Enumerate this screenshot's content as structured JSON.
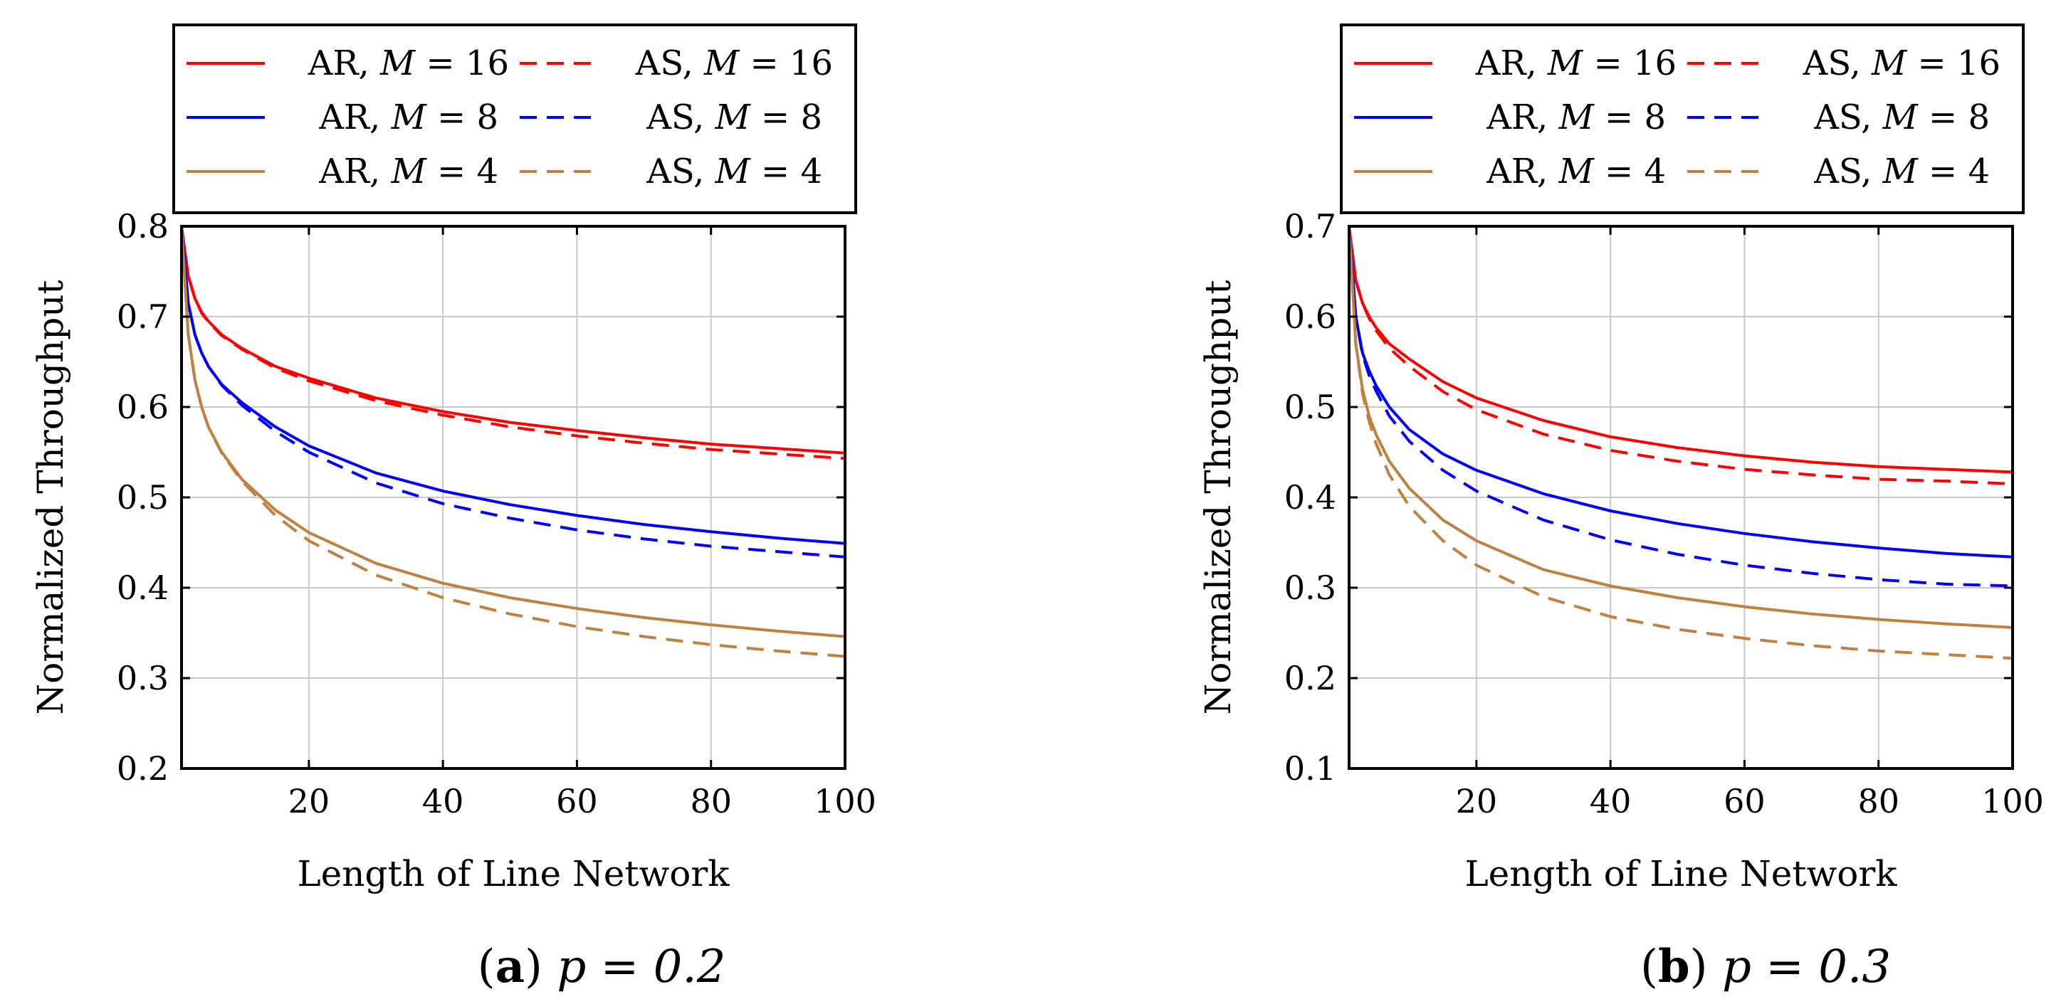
{
  "chart_data": [
    {
      "type": "line",
      "caption_letter": "a",
      "caption_expr": "p = 0.2",
      "xlabel": "Length of Line Network",
      "ylabel": "Normalized Throughput",
      "xlim": [
        1,
        100
      ],
      "ylim": [
        0.2,
        0.8
      ],
      "xticks": [
        20,
        40,
        60,
        80,
        100
      ],
      "xtick_labels": [
        "20",
        "40",
        "60",
        "80",
        "100"
      ],
      "yticks": [
        0.2,
        0.3,
        0.4,
        0.5,
        0.6,
        0.7,
        0.8
      ],
      "ytick_labels": [
        "0.2",
        "0.3",
        "0.4",
        "0.5",
        "0.6",
        "0.7",
        "0.8"
      ],
      "grid": true,
      "legend_position": "top",
      "x": [
        1,
        2,
        3,
        4,
        5,
        7,
        10,
        15,
        20,
        30,
        40,
        50,
        60,
        70,
        80,
        90,
        100
      ],
      "series": [
        {
          "name": "AR, M = 16",
          "scheme": "AR",
          "m": "16",
          "color": "#ff0000",
          "dashed": false,
          "values": [
            0.8,
            0.745,
            0.72,
            0.705,
            0.695,
            0.68,
            0.665,
            0.645,
            0.632,
            0.61,
            0.595,
            0.583,
            0.574,
            0.566,
            0.559,
            0.554,
            0.549
          ]
        },
        {
          "name": "AS, M = 16",
          "scheme": "AS",
          "m": "16",
          "color": "#ff0000",
          "dashed": true,
          "values": [
            0.8,
            0.745,
            0.72,
            0.704,
            0.694,
            0.679,
            0.664,
            0.643,
            0.629,
            0.607,
            0.591,
            0.578,
            0.568,
            0.56,
            0.553,
            0.548,
            0.543
          ]
        },
        {
          "name": "AR, M = 8",
          "scheme": "AR",
          "m": "8",
          "color": "#0000ff",
          "dashed": false,
          "values": [
            0.8,
            0.715,
            0.68,
            0.66,
            0.645,
            0.625,
            0.605,
            0.578,
            0.557,
            0.527,
            0.507,
            0.492,
            0.48,
            0.47,
            0.462,
            0.455,
            0.449
          ]
        },
        {
          "name": "AS, M = 8",
          "scheme": "AS",
          "m": "8",
          "color": "#0000ff",
          "dashed": true,
          "values": [
            0.8,
            0.715,
            0.68,
            0.66,
            0.645,
            0.624,
            0.602,
            0.573,
            0.55,
            0.516,
            0.493,
            0.477,
            0.464,
            0.454,
            0.446,
            0.44,
            0.434
          ]
        },
        {
          "name": "AR, M = 4",
          "scheme": "AR",
          "m": "4",
          "color": "#bf8040",
          "dashed": false,
          "values": [
            0.8,
            0.68,
            0.63,
            0.6,
            0.578,
            0.55,
            0.52,
            0.486,
            0.461,
            0.427,
            0.405,
            0.389,
            0.377,
            0.367,
            0.359,
            0.352,
            0.346
          ]
        },
        {
          "name": "AS, M = 4",
          "scheme": "AS",
          "m": "4",
          "color": "#bf8040",
          "dashed": true,
          "values": [
            0.8,
            0.68,
            0.63,
            0.6,
            0.578,
            0.549,
            0.518,
            0.48,
            0.452,
            0.414,
            0.389,
            0.371,
            0.357,
            0.346,
            0.337,
            0.33,
            0.324
          ]
        }
      ]
    },
    {
      "type": "line",
      "caption_letter": "b",
      "caption_expr": "p = 0.3",
      "xlabel": "Length of Line Network",
      "ylabel": "Normalized Throughput",
      "xlim": [
        1,
        100
      ],
      "ylim": [
        0.1,
        0.7
      ],
      "xticks": [
        20,
        40,
        60,
        80,
        100
      ],
      "xtick_labels": [
        "20",
        "40",
        "60",
        "80",
        "100"
      ],
      "yticks": [
        0.1,
        0.2,
        0.3,
        0.4,
        0.5,
        0.6,
        0.7
      ],
      "ytick_labels": [
        "0.1",
        "0.2",
        "0.3",
        "0.4",
        "0.5",
        "0.6",
        "0.7"
      ],
      "grid": true,
      "legend_position": "top",
      "x": [
        1,
        2,
        3,
        4,
        5,
        7,
        10,
        15,
        20,
        30,
        40,
        50,
        60,
        70,
        80,
        90,
        100
      ],
      "series": [
        {
          "name": "AR, M = 16",
          "scheme": "AR",
          "m": "16",
          "color": "#ff0000",
          "dashed": false,
          "values": [
            0.7,
            0.64,
            0.615,
            0.6,
            0.588,
            0.57,
            0.553,
            0.528,
            0.51,
            0.485,
            0.467,
            0.455,
            0.446,
            0.439,
            0.434,
            0.431,
            0.428
          ]
        },
        {
          "name": "AS, M = 16",
          "scheme": "AS",
          "m": "16",
          "color": "#ff0000",
          "dashed": true,
          "values": [
            0.7,
            0.64,
            0.615,
            0.598,
            0.585,
            0.565,
            0.545,
            0.517,
            0.497,
            0.47,
            0.452,
            0.44,
            0.431,
            0.425,
            0.42,
            0.418,
            0.415
          ]
        },
        {
          "name": "AR, M = 8",
          "scheme": "AR",
          "m": "8",
          "color": "#0000ff",
          "dashed": false,
          "values": [
            0.7,
            0.6,
            0.56,
            0.54,
            0.524,
            0.5,
            0.475,
            0.448,
            0.43,
            0.404,
            0.385,
            0.371,
            0.36,
            0.351,
            0.344,
            0.338,
            0.334
          ]
        },
        {
          "name": "AS, M = 8",
          "scheme": "AS",
          "m": "8",
          "color": "#0000ff",
          "dashed": true,
          "values": [
            0.7,
            0.6,
            0.558,
            0.535,
            0.518,
            0.49,
            0.462,
            0.43,
            0.407,
            0.375,
            0.353,
            0.337,
            0.325,
            0.316,
            0.309,
            0.304,
            0.302
          ]
        },
        {
          "name": "AR, M = 4",
          "scheme": "AR",
          "m": "4",
          "color": "#bf8040",
          "dashed": false,
          "values": [
            0.7,
            0.57,
            0.52,
            0.49,
            0.47,
            0.44,
            0.41,
            0.375,
            0.352,
            0.32,
            0.302,
            0.289,
            0.279,
            0.271,
            0.265,
            0.26,
            0.256
          ]
        },
        {
          "name": "AS, M = 4",
          "scheme": "AS",
          "m": "4",
          "color": "#bf8040",
          "dashed": true,
          "values": [
            0.7,
            0.57,
            0.515,
            0.484,
            0.46,
            0.425,
            0.39,
            0.352,
            0.325,
            0.29,
            0.268,
            0.254,
            0.244,
            0.236,
            0.23,
            0.226,
            0.222
          ]
        }
      ]
    }
  ]
}
